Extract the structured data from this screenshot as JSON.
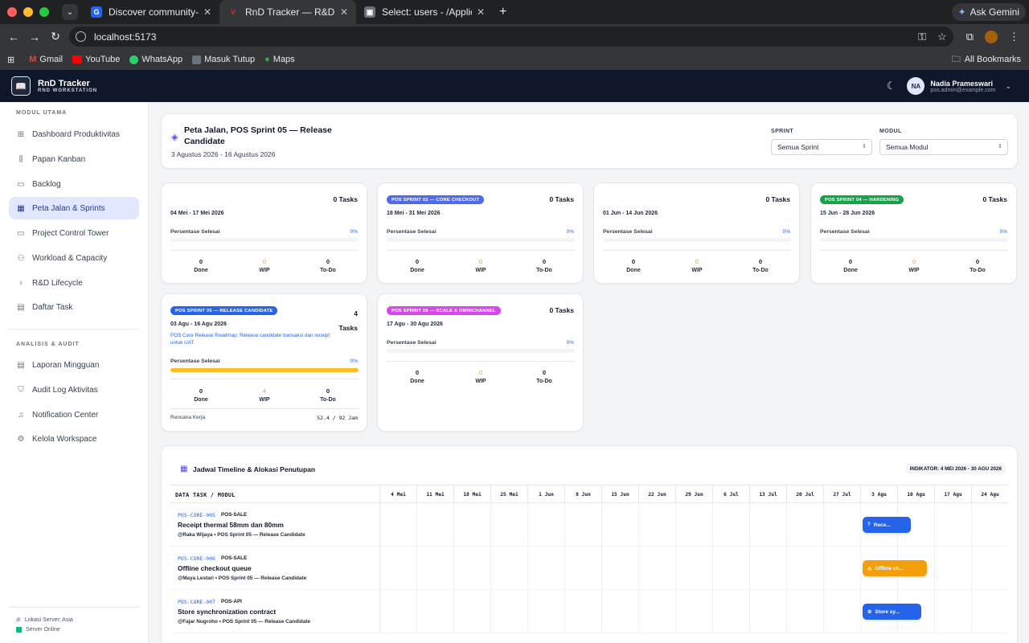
{
  "browser": {
    "tabs": [
      {
        "title": "Discover community-made U",
        "fav": "Ⓖ",
        "fav_color": "#2563eb"
      },
      {
        "title": "RnD Tracker — R&D Task Man",
        "fav": "V",
        "fav_color": "#dc2626"
      },
      {
        "title": "Select: users - /Applications/",
        "fav": "▣",
        "fav_color": "#9ca3af"
      }
    ],
    "gemini_label": "Ask Gemini",
    "url": "localhost:5173",
    "bookmarks": [
      "Gmail",
      "YouTube",
      "WhatsApp",
      "Masuk Tutup",
      "Maps"
    ],
    "all_bookmarks": "All Bookmarks"
  },
  "app": {
    "brand_title": "RnD Tracker",
    "brand_subtitle": "RND WORKSTATION",
    "user_initials": "NA",
    "user_name": "Nadia Prameswari",
    "user_email": "pos.admin@example.com"
  },
  "sidebar": {
    "section1": "MODUL UTAMA",
    "items1": [
      {
        "label": "Dashboard Produktivitas",
        "icon": "grid-icon"
      },
      {
        "label": "Papan Kanban",
        "icon": "kanban-icon"
      },
      {
        "label": "Backlog",
        "icon": "archive-icon"
      },
      {
        "label": "Peta Jalan & Sprints",
        "icon": "calendar-icon"
      },
      {
        "label": "Project Control Tower",
        "icon": "tower-icon"
      },
      {
        "label": "Workload & Capacity",
        "icon": "users-icon"
      },
      {
        "label": "R&D Lifecycle",
        "icon": "bulb-icon"
      },
      {
        "label": "Daftar Task",
        "icon": "table-icon"
      }
    ],
    "section2": "ANALISIS & AUDIT",
    "items2": [
      {
        "label": "Laporan Mingguan",
        "icon": "report-icon"
      },
      {
        "label": "Audit Log Aktivitas",
        "icon": "shield-icon"
      },
      {
        "label": "Notification Center",
        "icon": "bell-icon"
      },
      {
        "label": "Kelola Workspace",
        "icon": "gear-icon"
      }
    ],
    "server_location": "Lokasi Server: Asia",
    "server_status": "Server Online"
  },
  "page": {
    "title": "Peta Jalan, POS Sprint 05 — Release Candidate",
    "date_range": "3 Agustus 2026 - 16 Agustus 2026",
    "filter_sprint_label": "SPRINT",
    "filter_sprint_value": "Semua Sprint",
    "filter_module_label": "MODUL",
    "filter_module_value": "Semua Modul"
  },
  "labels": {
    "progress": "Persentase Selesai",
    "done": "Done",
    "wip": "WIP",
    "todo": "To-Do",
    "plan": "Rencana Kerja:"
  },
  "sprints": [
    {
      "badge": "",
      "tasks": "0 Tasks",
      "date": "04 Mei - 17 Mei 2026",
      "percent": "0%",
      "progress": 0,
      "done": "0",
      "wip": "0",
      "todo": "0"
    },
    {
      "badge": "POS SPRINT 02 — CORE CHECKOUT",
      "badge_color": "#4f6bed",
      "tasks": "0 Tasks",
      "date": "18 Mei - 31 Mei 2026",
      "percent": "0%",
      "progress": 0,
      "done": "0",
      "wip": "0",
      "todo": "0"
    },
    {
      "badge": "",
      "tasks": "0 Tasks",
      "date": "01 Jun - 14 Jun 2026",
      "percent": "0%",
      "progress": 0,
      "done": "0",
      "wip": "0",
      "todo": "0"
    },
    {
      "badge": "POS SPRINT 04 — HARDENING",
      "badge_color": "#16a34a",
      "tasks": "0 Tasks",
      "date": "15 Jun - 28 Jun 2026",
      "percent": "0%",
      "progress": 0,
      "done": "0",
      "wip": "0",
      "todo": "0"
    },
    {
      "badge": "POS SPRINT 05 — RELEASE CANDIDATE",
      "badge_color": "#2563eb",
      "tasks_num": "4",
      "tasks_word": "Tasks",
      "date": "03 Agu - 16 Agu 2026",
      "desc": "POS Core Release Roadmap: Release candidate transaksi dan receipt untuk UAT.",
      "percent": "0%",
      "progress": 1,
      "done": "0",
      "wip": "4",
      "todo": "0",
      "plan_value": "52.4 / 92 Jam"
    },
    {
      "badge": "POS SPRINT 06 — SCALE & OMNICHANNEL",
      "badge_color": "#d946ef",
      "tasks": "0 Tasks",
      "date": "17 Agu - 30 Agu 2026",
      "percent": "0%",
      "progress": 0,
      "done": "0",
      "wip": "0",
      "todo": "0"
    }
  ],
  "timeline": {
    "title": "Jadwal Timeline & Alokasi Penutupan",
    "indicator": "INDIKATOR: 4 MEI 2026 - 30 AGU 2026",
    "col0": "DATA TASK / MODUL",
    "weeks": [
      "4 Mei",
      "11 Mei",
      "18 Mei",
      "25 Mei",
      "1 Jun",
      "8 Jun",
      "15 Jun",
      "22 Jun",
      "29 Jun",
      "6 Jul",
      "13 Jul",
      "20 Jul",
      "27 Jul",
      "3 Agu",
      "10 Agu",
      "17 Agu",
      "24 Agu"
    ],
    "rows": [
      {
        "code": "POS-CORE-005",
        "module": "POS-SALE",
        "name": "Receipt thermal 58mm dan 80mm",
        "meta": "@Raka Wijaya  •  POS Sprint 05 — Release Candidate",
        "bar_label": "Rece...",
        "bar_icon": "?",
        "bar_color": "#2563eb"
      },
      {
        "code": "POS-CORE-006",
        "module": "POS-SALE",
        "name": "Offline checkout queue",
        "meta": "@Maya Lestari  •  POS Sprint 05 — Release Candidate",
        "bar_label": "Offline ch...",
        "bar_icon": "⚠",
        "bar_color": "#f59e0b"
      },
      {
        "code": "POS-CORE-007",
        "module": "POS-API",
        "name": "Store synchronization contract",
        "meta": "@Fajar Nugroho  •  POS Sprint 05 — Release Candidate",
        "bar_label": "Store sy...",
        "bar_icon": "⚙",
        "bar_color": "#2563eb"
      }
    ]
  }
}
